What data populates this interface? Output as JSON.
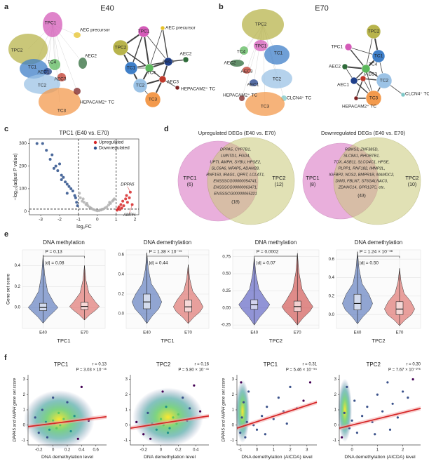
{
  "panels": {
    "a": {
      "letter": "a",
      "title": "E40",
      "umap_labels": [
        "TPC1",
        "AEC precursor",
        "TPC2",
        "AEC2",
        "TC1",
        "TC4",
        "AEC1",
        "AEC3",
        "TC2",
        "TC3",
        "HEPACAM2⁺ TC"
      ],
      "network_labels": [
        "TPC1",
        "AEC precursor",
        "TPC2",
        "AEC1",
        "TC1",
        "TC4",
        "TC2",
        "AEC2",
        "AEC3",
        "TC3",
        "HEPACAM2⁺ TC"
      ]
    },
    "b": {
      "letter": "b",
      "title": "E70",
      "umap_labels": [
        "TPC2",
        "TPC1",
        "TC4",
        "TC1",
        "AEC2",
        "AEC3",
        "TC2",
        "AEC1",
        "CLCN4⁺ TC",
        "HEPACAM2⁺ TC",
        "TC3"
      ],
      "network_labels": [
        "TPC2",
        "TPC1",
        "TC1",
        "TC4",
        "AEC1",
        "AEC2",
        "AEC3",
        "TC2",
        "CLCN4⁺ TC",
        "TC3",
        "HEPACAM2⁺ TC"
      ]
    },
    "c": {
      "letter": "c"
    },
    "d": {
      "letter": "d",
      "venns": [
        {
          "title": "Upregulated DEGs (E40 vs. E70)",
          "left": "TPC1",
          "left_count": "(6)",
          "right": "TPC2",
          "right_count": "(12)",
          "genes": [
            "DPPA5, CYP7B1,",
            "LMNTD1, FGD4,",
            "UPTI, AMPH, SYBU, HPSE2,",
            "SLC6A6, MFAP5, ADAM28,",
            "RNF150, IRAG1, QPRT, LCLAT1,",
            "ENSSSCG00000054741,",
            "ENSSSCG00000063471,",
            "ENSSSCG00000065221"
          ],
          "shared_count": "(18)"
        },
        {
          "title": "Downregulated DEGs (E40 vs. E70)",
          "left": "TPC1",
          "left_count": "(8)",
          "right": "TPC2",
          "right_count": "(10)",
          "genes": [
            "RBMS3, ZNF385D,",
            "SLC8A1, RHOBTB1,",
            "TOX, ASB11, SLCO4C1, HPSE,",
            "PLPP1, RNF182, IMMP2L,",
            "IGFBP2, NOS2, BMPR1B, MAMDC2,",
            "DIM3, FBLN7, ST6GALNAC3,",
            "ZDHHC14, GPR137C, etc."
          ],
          "shared_count": "(43)"
        }
      ]
    },
    "e": {
      "letter": "e"
    },
    "f": {
      "letter": "f"
    }
  },
  "chart_data": [
    {
      "type": "scatter",
      "title": "TPC1 (E40 vs. E70)",
      "x_label": "log₂FC",
      "y_label": "−log₁₀(adjust P value)",
      "xlim": [
        -3.6,
        2.2
      ],
      "ylim": [
        -15,
        320
      ],
      "xticks": [
        -3,
        -2,
        -1,
        0,
        1,
        2
      ],
      "yticks": [
        0,
        100,
        200,
        300
      ],
      "thresholds": {
        "x": [
          -1,
          1
        ],
        "y": [
          10
        ]
      },
      "legend": "top-right",
      "series": [
        {
          "name": "Upregulated",
          "color": "#d62728",
          "x": [
            1.05,
            1.1,
            1.15,
            1.2,
            1.25,
            1.3,
            1.35,
            1.4,
            1.5,
            1.55,
            1.6,
            1.7,
            1.75,
            1.85
          ],
          "y": [
            5,
            12,
            20,
            8,
            30,
            15,
            45,
            25,
            55,
            70,
            40,
            60,
            85,
            30
          ]
        },
        {
          "name": "Downregulated",
          "color": "#2c4f8a",
          "x": [
            -3.2,
            -2.9,
            -2.7,
            -2.5,
            -2.4,
            -2.2,
            -2.1,
            -2.0,
            -1.9,
            -1.8,
            -1.7,
            -1.6,
            -1.5,
            -1.4,
            -1.3,
            -1.2,
            -1.15,
            -1.1,
            -1.05,
            -2.3,
            -1.9,
            -1.6
          ],
          "y": [
            300,
            300,
            270,
            230,
            250,
            200,
            180,
            210,
            160,
            150,
            130,
            120,
            110,
            100,
            90,
            70,
            60,
            40,
            25,
            190,
            140,
            80
          ]
        },
        {
          "color": "#b0b0b0",
          "x": [
            -0.9,
            -0.8,
            -0.7,
            -0.6,
            -0.5,
            -0.4,
            -0.3,
            -0.2,
            -0.1,
            0,
            0.1,
            0.2,
            0.3,
            0.4,
            0.5,
            0.6,
            0.7,
            0.8,
            0.9,
            -0.95,
            -0.75,
            -0.55,
            0.65,
            0.85,
            -0.35,
            0.25
          ],
          "y": [
            60,
            45,
            40,
            30,
            25,
            18,
            12,
            8,
            5,
            3,
            4,
            6,
            10,
            15,
            20,
            28,
            35,
            45,
            55,
            80,
            55,
            35,
            40,
            50,
            15,
            9
          ]
        }
      ],
      "annotations": [
        {
          "text": "DPPA5",
          "x": 1.75,
          "y": 85
        },
        {
          "text": "AMPH",
          "x": 1.85,
          "y": 30
        }
      ]
    },
    {
      "type": "violin",
      "title": "DNA methylation",
      "x_label": "TPC1",
      "y_label": "Gene set score",
      "categories": [
        "E40",
        "E70"
      ],
      "colors": [
        "#3b5fb0",
        "#d9534f"
      ],
      "groups": [
        {
          "min": -0.15,
          "q1": -0.03,
          "median": 0.0,
          "q3": 0.04,
          "max": 0.5
        },
        {
          "min": -0.12,
          "q1": -0.02,
          "median": 0.01,
          "q3": 0.05,
          "max": 0.4
        }
      ],
      "stats": [
        "P = 0.13",
        "|d| = 0.08"
      ],
      "ylim": [
        -0.2,
        0.55
      ],
      "yticks": [
        {
          "value": 0,
          "label": "0.0"
        },
        0.2,
        0.4
      ],
      "grid": true
    },
    {
      "type": "violin",
      "title": "DNA demethylation",
      "x_label": "TPC1",
      "categories": [
        "E40",
        "E70"
      ],
      "colors": [
        "#3b5fb0",
        "#d9534f"
      ],
      "groups": [
        {
          "min": -0.1,
          "q1": 0.05,
          "median": 0.12,
          "q3": 0.2,
          "max": 0.62
        },
        {
          "min": -0.1,
          "q1": 0.02,
          "median": 0.07,
          "q3": 0.14,
          "max": 0.5
        }
      ],
      "stats": [
        "P = 1.38 × 10⁻¹⁵",
        "|d| = 0.44"
      ],
      "ylim": [
        -0.15,
        0.65
      ],
      "yticks": [
        {
          "value": 0,
          "label": "0.0"
        },
        0.2,
        0.4,
        0.6
      ],
      "grid": true
    },
    {
      "type": "violin",
      "title": "DNA methylation",
      "x_label": "TPC2",
      "categories": [
        "E40",
        "E70"
      ],
      "colors": [
        "#3b3fb8",
        "#c9302c"
      ],
      "groups": [
        {
          "min": -0.25,
          "q1": -0.02,
          "median": 0.05,
          "q3": 0.12,
          "max": 0.75
        },
        {
          "min": -0.25,
          "q1": -0.05,
          "median": 0.02,
          "q3": 0.1,
          "max": 0.8
        }
      ],
      "stats": [
        "P = 0.0002",
        "|d| = 0.07"
      ],
      "ylim": [
        -0.3,
        0.85
      ],
      "yticks": [
        -0.25,
        {
          "value": 0,
          "label": "0.00"
        },
        0.25,
        {
          "value": 0.5,
          "label": "0.50"
        },
        0.75
      ],
      "grid": true
    },
    {
      "type": "violin",
      "title": "DNA demethylation",
      "x_label": "TPC2",
      "categories": [
        "E40",
        "E70"
      ],
      "colors": [
        "#3b5fb0",
        "#d9534f"
      ],
      "groups": [
        {
          "min": -0.1,
          "q1": 0.05,
          "median": 0.12,
          "q3": 0.22,
          "max": 0.68
        },
        {
          "min": -0.12,
          "q1": 0.0,
          "median": 0.06,
          "q3": 0.14,
          "max": 0.5
        }
      ],
      "stats": [
        "P = 1.24 × 10⁻³⁸",
        "|d| = 0.50"
      ],
      "ylim": [
        -0.15,
        0.7
      ],
      "yticks": [
        {
          "value": 0,
          "label": "0.0"
        },
        0.2,
        0.4,
        0.6
      ],
      "grid": true
    },
    {
      "type": "density_scatter",
      "title": "TPC1",
      "stats": [
        "r = 0.13",
        "P = 3.03 × 10⁻¹⁶"
      ],
      "x_label": "DNA demethylation level",
      "y_label": "DPPA5 and AMPH gene set score",
      "xlim": [
        -0.35,
        0.75
      ],
      "ylim": [
        -1.3,
        3.3
      ],
      "xticks": [
        -0.2,
        0,
        0.2,
        0.4,
        0.6
      ],
      "yticks": [
        -1,
        0,
        1,
        2,
        3
      ],
      "x": [
        -0.25,
        -0.2,
        -0.15,
        -0.1,
        -0.05,
        0,
        0.02,
        0.05,
        0.08,
        0.1,
        0.15,
        0.2,
        0.25,
        0.3,
        0.4,
        0.5,
        -0.08,
        0.0,
        0.12,
        0.35
      ],
      "y": [
        0.5,
        -0.5,
        1.0,
        0.2,
        -0.3,
        0.3,
        0.1,
        -0.2,
        0.8,
        0.0,
        0.4,
        1.5,
        -0.4,
        0.6,
        2.5,
        0.3,
        -0.8,
        1.8,
        0.2,
        -0.9
      ],
      "fit": {
        "x": [
          -0.35,
          0.75
        ],
        "y": [
          -0.1,
          0.55
        ]
      }
    },
    {
      "type": "density_scatter",
      "title": "TPC2",
      "stats": [
        "r = 0.16",
        "P = 5.80 × 10⁻⁴¹"
      ],
      "x_label": "DNA demethylation level",
      "xlim": [
        -0.35,
        0.55
      ],
      "ylim": [
        -1.3,
        3.3
      ],
      "xticks": [
        -0.2,
        0,
        0.2,
        0.4
      ],
      "yticks": [
        -1,
        0,
        1,
        2,
        3
      ],
      "x": [
        -0.28,
        -0.2,
        -0.15,
        -0.1,
        -0.05,
        0,
        0.03,
        0.06,
        0.1,
        0.14,
        0.2,
        0.25,
        0.3,
        0.38,
        0.45,
        -0.12,
        0.02,
        0.08,
        0.18,
        0.33
      ],
      "y": [
        0.2,
        -0.6,
        0.8,
        0.1,
        -0.3,
        0.4,
        0.0,
        1.2,
        -0.2,
        0.5,
        0.7,
        1.8,
        0.3,
        2.6,
        0.9,
        -0.9,
        2.2,
        -0.5,
        0.1,
        1.1
      ],
      "fit": {
        "x": [
          -0.35,
          0.55
        ],
        "y": [
          -0.2,
          0.6
        ]
      }
    },
    {
      "type": "density_scatter",
      "title": "TPC1",
      "stats": [
        "r = 0.31",
        "P = 5.46 × 10⁻⁹⁵"
      ],
      "x_label": "DNA demethylation (AICDA) level",
      "y_label": "DPPA5 and AMPH gene set score",
      "xlim": [
        -1.2,
        3.6
      ],
      "ylim": [
        -1.3,
        3.3
      ],
      "xticks": [
        -1,
        0,
        1,
        2,
        3
      ],
      "yticks": [
        -1,
        0,
        1,
        2,
        3
      ],
      "x": [
        -1,
        -0.9,
        -0.8,
        -0.7,
        -0.6,
        -0.5,
        -0.2,
        0,
        0.3,
        0.6,
        1,
        1.3,
        1.6,
        2,
        2.4,
        2.8,
        3.2,
        0.5,
        1.8,
        -0.95
      ],
      "y": [
        -0.5,
        0.5,
        1.5,
        -0.8,
        0.2,
        2.2,
        0.0,
        -0.3,
        0.6,
        1.2,
        0.4,
        1.8,
        0.9,
        2.5,
        1.1,
        1.6,
        2.8,
        -0.6,
        0.1,
        2.8
      ],
      "fit": {
        "x": [
          -1.2,
          3.6
        ],
        "y": [
          -0.2,
          1.5
        ]
      }
    },
    {
      "type": "density_scatter",
      "title": "TPC2",
      "stats": [
        "r = 0.30",
        "P = 7.67 × 10⁻¹⁰⁶"
      ],
      "x_label": "DNA demethylation (AICDA) level",
      "xlim": [
        -0.5,
        2.7
      ],
      "ylim": [
        -1.3,
        3.3
      ],
      "xticks": [
        0,
        1,
        2
      ],
      "yticks": [
        -1,
        0,
        1,
        2,
        3
      ],
      "x": [
        -0.4,
        -0.3,
        -0.2,
        -0.1,
        0,
        0.1,
        0.2,
        0.4,
        0.6,
        0.8,
        1.0,
        1.2,
        1.4,
        1.6,
        1.8,
        2.0,
        2.2,
        2.4,
        0.9,
        1.5
      ],
      "y": [
        -0.8,
        0.8,
        2.5,
        -0.2,
        0.3,
        1.6,
        -0.5,
        0.6,
        1.2,
        0.2,
        2.0,
        0.9,
        2.8,
        1.4,
        0.5,
        2.2,
        1.8,
        3.0,
        -0.6,
        -0.3
      ],
      "fit": {
        "x": [
          -0.5,
          2.7
        ],
        "y": [
          -0.2,
          1.1
        ]
      }
    }
  ]
}
